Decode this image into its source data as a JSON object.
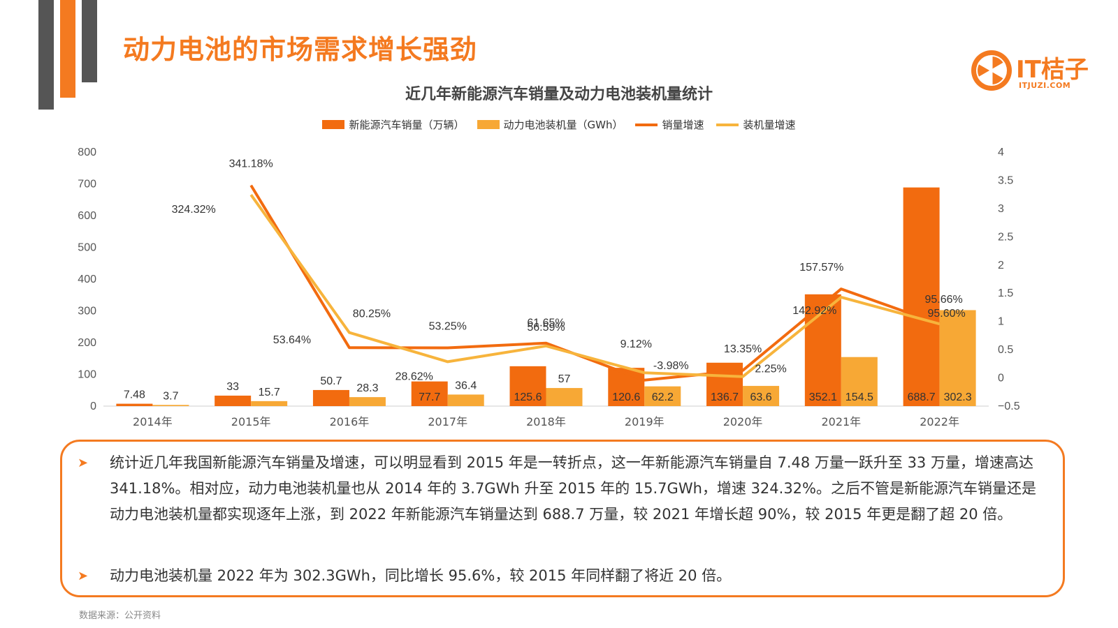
{
  "page": {
    "title": "动力电池的市场需求增长强劲",
    "logo_text": "IT桔子",
    "logo_sub": "ITJUZI.COM",
    "source": "数据来源：公开资料"
  },
  "notes": [
    "统计近几年我国新能源汽车销量及增速，可以明显看到 2015 年是一转折点，这一年新能源汽车销量自 7.48 万量一跃升至 33 万量，增速高达 341.18%。相对应，动力电池装机量也从 2014 年的 3.7GWh 升至 2015 年的 15.7GWh，增速 324.32%。之后不管是新能源汽车销量还是动力电池装机量都实现逐年上涨，到 2022 年新能源汽车销量达到 688.7 万量，较 2021 年增长超 90%，较 2015 年更是翻了超 20 倍。",
    "动力电池装机量 2022 年为 302.3GWh，同比增长 95.6%，较 2015 年同样翻了将近 20 倍。"
  ],
  "colors": {
    "accent": "#f47a20",
    "sales_bar": "#f26b0f",
    "battery_bar": "#f7a835",
    "sales_line": "#f26b0f",
    "battery_line": "#f7b43c",
    "deco_gray": "#555555"
  },
  "chart_data": {
    "type": "bar",
    "title": "近几年新能源汽车销量及动力电池装机量统计",
    "categories": [
      "2014年",
      "2015年",
      "2016年",
      "2017年",
      "2018年",
      "2019年",
      "2020年",
      "2021年",
      "2022年"
    ],
    "series": [
      {
        "name": "新能源汽车销量（万辆）",
        "type": "bar",
        "axis": "left",
        "values": [
          7.48,
          33,
          50.7,
          77.7,
          125.6,
          120.6,
          136.7,
          352.1,
          688.7
        ],
        "labels": [
          "7.48",
          "33",
          "50.7",
          "77.7",
          "125.6",
          "120.6",
          "136.7",
          "352.1",
          "688.7"
        ]
      },
      {
        "name": "动力电池装机量（GWh）",
        "type": "bar",
        "axis": "left",
        "values": [
          3.7,
          15.7,
          28.3,
          36.4,
          57,
          62.2,
          63.6,
          154.5,
          302.3
        ],
        "labels": [
          "3.7",
          "15.7",
          "28.3",
          "36.4",
          "57",
          "62.2",
          "63.6",
          "154.5",
          "302.3"
        ]
      },
      {
        "name": "销量增速",
        "type": "line",
        "axis": "right",
        "values": [
          null,
          3.4118,
          0.5364,
          0.5325,
          0.6165,
          -0.0398,
          0.1335,
          1.5757,
          0.9566
        ],
        "labels": [
          "",
          "341.18%",
          "53.64%",
          "53.25%",
          "61.65%",
          "-3.98%",
          "13.35%",
          "157.57%",
          "95.66%"
        ]
      },
      {
        "name": "装机量增速",
        "type": "line",
        "axis": "right",
        "values": [
          null,
          3.2432,
          0.8025,
          0.2862,
          0.5659,
          0.0912,
          0.0225,
          1.4292,
          0.956
        ],
        "labels": [
          "",
          "324.32%",
          "80.25%",
          "28.62%",
          "56.59%",
          "9.12%",
          "2.25%",
          "142.92%",
          "95.60%"
        ]
      }
    ],
    "y_left": {
      "min": 0,
      "max": 800,
      "ticks": [
        "0",
        "100",
        "200",
        "300",
        "400",
        "500",
        "600",
        "700",
        "800"
      ]
    },
    "y_right": {
      "min": -0.5,
      "max": 4,
      "ticks": [
        "-0.5",
        "0",
        "0.5",
        "1",
        "1.5",
        "2",
        "2.5",
        "3",
        "3.5",
        "4"
      ]
    },
    "grid": false,
    "legend": "top"
  }
}
